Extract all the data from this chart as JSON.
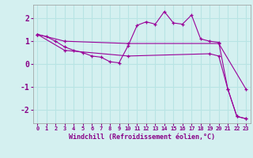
{
  "title": "",
  "xlabel": "Windchill (Refroidissement éolien,°C)",
  "ylabel": "",
  "background_color": "#d4f0f0",
  "grid_color": "#b8e4e4",
  "line_color": "#990099",
  "xlim": [
    -0.5,
    23.5
  ],
  "ylim": [
    -2.6,
    2.6
  ],
  "xticks": [
    0,
    1,
    2,
    3,
    4,
    5,
    6,
    7,
    8,
    9,
    10,
    11,
    12,
    13,
    14,
    15,
    16,
    17,
    18,
    19,
    20,
    21,
    22,
    23
  ],
  "yticks": [
    -2,
    -1,
    0,
    1,
    2
  ],
  "series": [
    {
      "x": [
        0,
        1,
        2,
        3,
        4,
        5,
        6,
        7,
        8,
        9,
        10,
        11,
        12,
        13,
        14,
        15,
        16,
        17,
        18,
        19,
        20,
        21,
        22,
        23
      ],
      "y": [
        1.3,
        1.2,
        1.0,
        0.75,
        0.6,
        0.5,
        0.35,
        0.3,
        0.1,
        0.05,
        0.8,
        1.7,
        1.85,
        1.75,
        2.3,
        1.8,
        1.75,
        2.15,
        1.1,
        1.0,
        0.95,
        -1.1,
        -2.3,
        -2.4
      ]
    },
    {
      "x": [
        0,
        3,
        10,
        20,
        23
      ],
      "y": [
        1.3,
        1.0,
        0.9,
        0.9,
        -1.1
      ]
    },
    {
      "x": [
        0,
        3,
        10,
        19,
        20,
        21,
        22,
        23
      ],
      "y": [
        1.3,
        0.6,
        0.35,
        0.45,
        0.35,
        -1.1,
        -2.3,
        -2.4
      ]
    }
  ]
}
